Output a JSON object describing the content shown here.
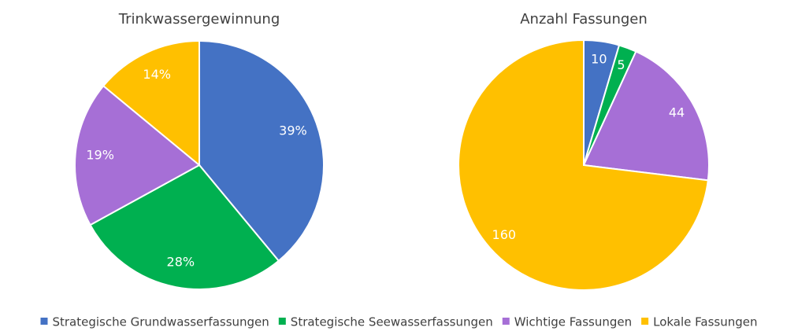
{
  "chart_data": [
    {
      "type": "pie",
      "title": "Trinkwassergewinnung",
      "values": [
        39,
        28,
        19,
        14
      ],
      "value_labels": [
        "39%",
        "28%",
        "19%",
        "14%"
      ]
    },
    {
      "type": "pie",
      "title": "Anzahl Fassungen",
      "values": [
        10,
        5,
        44,
        160
      ]
    }
  ],
  "legend": {
    "categories": [
      "Strategische Grundwasserfassungen",
      "Strategische Seewasserfassungen",
      "Wichtige Fassungen",
      "Lokale Fassungen"
    ],
    "colors": [
      "#4472c4",
      "#00b050",
      "#a66fd6",
      "#ffc000"
    ]
  }
}
